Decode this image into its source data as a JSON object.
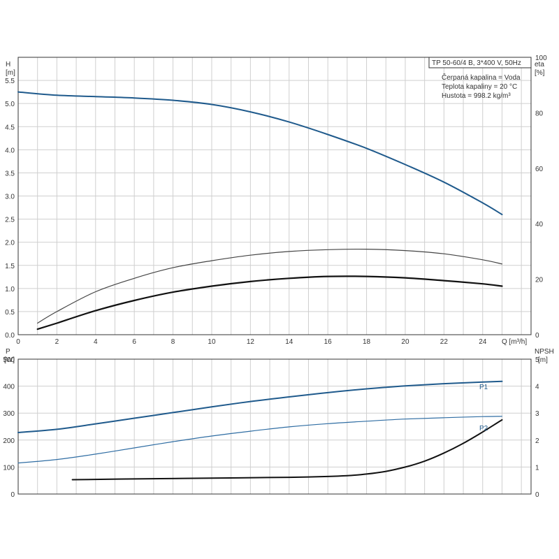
{
  "chart_data": [
    {
      "type": "line",
      "name": "head-efficiency",
      "x_label": "Q [m³/h]",
      "x_ticks": [
        "0",
        "2",
        "4",
        "6",
        "8",
        "10",
        "12",
        "14",
        "16",
        "18",
        "20",
        "22",
        "24"
      ],
      "xlim": [
        0,
        26.5
      ],
      "y_left_label_line1": "H",
      "y_left_label_line2": "[m]",
      "y_left_ticks": [
        "0.0",
        "0.5",
        "1.0",
        "1.5",
        "2.0",
        "2.5",
        "3.0",
        "3.5",
        "4.0",
        "4.5",
        "5.0",
        "5.5"
      ],
      "ylim_left": [
        0,
        6.0
      ],
      "y_right_label_line1": "eta",
      "y_right_label_line2": "[%]",
      "y_right_ticks": [
        "0",
        "20",
        "40",
        "60",
        "80",
        "100"
      ],
      "ylim_right": [
        0,
        100
      ],
      "info_box": {
        "title": "TP 50-60/4 B, 3*400 V, 50Hz",
        "lines": [
          "Čerpaná kapalina = Voda",
          "Teplota kapaliny = 20 °C",
          "Hustota = 998.2 kg/m³"
        ]
      },
      "series": [
        {
          "axis": "left",
          "color": "#1f5a8c",
          "width": 2,
          "x": [
            0,
            2,
            4,
            6,
            8,
            10,
            12,
            14,
            16,
            18,
            20,
            22,
            24,
            25
          ],
          "y": [
            5.25,
            5.18,
            5.15,
            5.12,
            5.07,
            4.98,
            4.82,
            4.6,
            4.33,
            4.03,
            3.68,
            3.3,
            2.85,
            2.6
          ]
        },
        {
          "axis": "left",
          "color": "#444444",
          "width": 1.2,
          "x": [
            1,
            2,
            4,
            6,
            8,
            10,
            12,
            14,
            16,
            18,
            20,
            22,
            24,
            25
          ],
          "y": [
            0.25,
            0.5,
            0.93,
            1.22,
            1.45,
            1.6,
            1.72,
            1.8,
            1.84,
            1.85,
            1.82,
            1.75,
            1.62,
            1.53
          ]
        },
        {
          "axis": "left",
          "color": "#111111",
          "width": 2.2,
          "x": [
            1,
            2,
            4,
            6,
            8,
            10,
            12,
            14,
            16,
            18,
            20,
            22,
            24,
            25
          ],
          "y": [
            0.12,
            0.25,
            0.52,
            0.74,
            0.92,
            1.05,
            1.15,
            1.22,
            1.26,
            1.26,
            1.23,
            1.17,
            1.1,
            1.05
          ]
        }
      ]
    },
    {
      "type": "line",
      "name": "power-npsh",
      "x_ticks": [],
      "xlim": [
        0,
        26.5
      ],
      "y_left_label_line1": "P",
      "y_left_label_line2": "[W]",
      "y_left_ticks": [
        "0",
        "100",
        "200",
        "300",
        "400",
        "500"
      ],
      "ylim_left": [
        0,
        500
      ],
      "y_right_label_line1": "NPSH",
      "y_right_label_line2": "[m]",
      "y_right_ticks": [
        "0",
        "1",
        "2",
        "3",
        "4",
        "5"
      ],
      "ylim_right": [
        0,
        5
      ],
      "series": [
        {
          "name": "P1",
          "axis": "left",
          "color": "#1f5a8c",
          "width": 2,
          "x": [
            0,
            2,
            4,
            6,
            8,
            10,
            12,
            14,
            16,
            18,
            20,
            22,
            24,
            25
          ],
          "y": [
            228,
            240,
            260,
            281,
            302,
            323,
            343,
            360,
            376,
            390,
            401,
            409,
            415,
            418
          ]
        },
        {
          "name": "P2",
          "axis": "left",
          "color": "#2f6da3",
          "width": 1.2,
          "x": [
            0,
            2,
            4,
            6,
            8,
            10,
            12,
            14,
            16,
            18,
            20,
            22,
            24,
            25
          ],
          "y": [
            115,
            128,
            148,
            171,
            194,
            215,
            233,
            249,
            261,
            270,
            278,
            283,
            287,
            288
          ]
        },
        {
          "axis": "right",
          "color": "#111111",
          "width": 2,
          "x": [
            2.8,
            6,
            10,
            14,
            16,
            17,
            18,
            19,
            20,
            21,
            22,
            23,
            24,
            25
          ],
          "y": [
            0.53,
            0.56,
            0.59,
            0.62,
            0.65,
            0.68,
            0.74,
            0.84,
            1.0,
            1.22,
            1.52,
            1.88,
            2.3,
            2.75
          ]
        }
      ]
    }
  ]
}
